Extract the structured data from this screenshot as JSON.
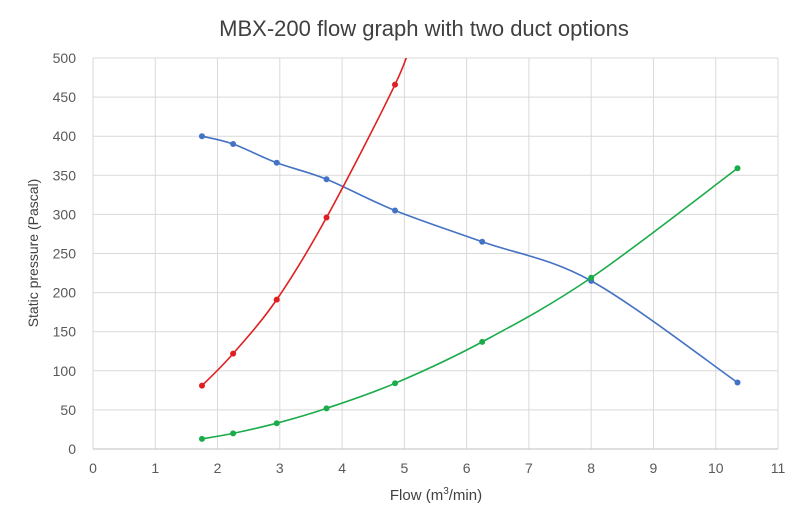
{
  "chart_data": {
    "type": "line",
    "title": "MBX-200 flow graph with two duct options",
    "xlabel": "Flow (m",
    "xlabel_sup": "3",
    "xlabel_suffix": "/min)",
    "ylabel": "Static pressure (Pascal)",
    "xlim": [
      0,
      11
    ],
    "ylim": [
      0,
      500
    ],
    "xticks": [
      0,
      1,
      2,
      3,
      4,
      5,
      6,
      7,
      8,
      9,
      10,
      11
    ],
    "yticks": [
      0,
      50,
      100,
      150,
      200,
      250,
      300,
      350,
      400,
      450,
      500
    ],
    "grid": true,
    "legend": "none",
    "series": [
      {
        "color": "#4472c4",
        "x": [
          1.75,
          2.25,
          2.95,
          3.75,
          4.85,
          6.25,
          8.0,
          10.35
        ],
        "y": [
          400,
          390,
          366,
          345,
          305,
          265,
          215,
          85
        ]
      },
      {
        "color": "#e02020",
        "x": [
          1.75,
          2.25,
          2.95,
          3.75,
          4.85
        ],
        "y": [
          81,
          122,
          191,
          296,
          466
        ]
      },
      {
        "color": "#1aab4a",
        "x": [
          1.75,
          2.25,
          2.95,
          3.75,
          4.85,
          6.25,
          8.0,
          10.35
        ],
        "y": [
          13,
          20,
          33,
          52,
          84,
          137,
          219,
          359
        ]
      }
    ]
  }
}
